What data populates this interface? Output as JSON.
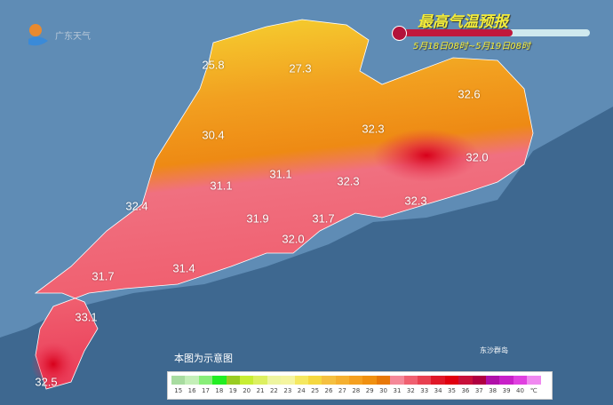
{
  "header": {
    "logo_text": "广东天气",
    "title": "最高气温预报",
    "period": "5月18日08时~5月19日08时",
    "period_progress": 0.6
  },
  "map": {
    "note": "本图为示意图",
    "island_label": "东沙群岛",
    "temperature_labels": [
      {
        "value": "25.8",
        "x_pct": 0
      },
      {
        "value": "27.3"
      },
      {
        "value": "32.6"
      },
      {
        "value": "30.4"
      },
      {
        "value": "32.3"
      },
      {
        "value": "32.0"
      },
      {
        "value": "31.1"
      },
      {
        "value": "31.1"
      },
      {
        "value": "32.3"
      },
      {
        "value": "32.3"
      },
      {
        "value": "32.4"
      },
      {
        "value": "31.9"
      },
      {
        "value": "31.7"
      },
      {
        "value": "32.0"
      },
      {
        "value": "31.7"
      },
      {
        "value": "31.4"
      },
      {
        "value": "33.1"
      },
      {
        "value": "32.5"
      }
    ]
  },
  "legend": {
    "unit": "℃",
    "ticks": [
      "15",
      "16",
      "17",
      "18",
      "19",
      "20",
      "21",
      "22",
      "23",
      "24",
      "25",
      "26",
      "27",
      "28",
      "29",
      "30",
      "31",
      "32",
      "33",
      "34",
      "35",
      "36",
      "37",
      "38",
      "39",
      "40"
    ],
    "colors": [
      "#a8dca0",
      "#c4efb8",
      "#88ee78",
      "#22ee22",
      "#99cc22",
      "#c8ee33",
      "#ddf060",
      "#eef5a0",
      "#f5f5a0",
      "#f5e860",
      "#f5d840",
      "#f5c040",
      "#f5b030",
      "#f5a020",
      "#f09010",
      "#e87808",
      "#f58898",
      "#f06070",
      "#e84050",
      "#e01828",
      "#e00010",
      "#c8103a",
      "#b00040",
      "#b010a8",
      "#c820c8",
      "#e040e0",
      "#f088f0"
    ]
  }
}
